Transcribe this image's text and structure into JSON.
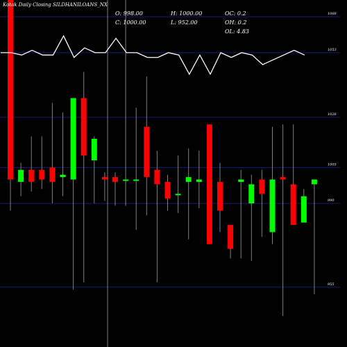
{
  "header": {
    "symbol_title": "Kotak Daily Closing SILDHANILOANS_NX"
  },
  "ohlc_panel": {
    "open": "O: 998.00",
    "close": "C: 1000.00",
    "high": "H: 1000.00",
    "low": "L: 952.00",
    "oc": "OC: 0.2",
    "oh": "OH: 0.2",
    "ol": "OL: 4.83"
  },
  "chart_data": {
    "type": "candlestick",
    "title": "",
    "grid": true,
    "background": "#000000",
    "colors": {
      "up": "#00ff00",
      "down": "#ff0000",
      "wick": "#808080",
      "line": "#ffffff",
      "grid": "#1a1a70"
    },
    "y_axis": {
      "range": [
        930,
        1075
      ],
      "ticks": [
        {
          "label": "1068",
          "value": 1068
        },
        {
          "label": "1053",
          "value": 1053
        },
        {
          "label": "1026",
          "value": 1026
        },
        {
          "label": "1005",
          "value": 1005
        },
        {
          "label": "990",
          "value": 990
        },
        {
          "label": "955",
          "value": 955
        }
      ]
    },
    "candles": [
      {
        "o": 1078,
        "h": 1078,
        "l": 987,
        "c": 1000
      },
      {
        "o": 999,
        "h": 1007,
        "l": 993,
        "c": 1004
      },
      {
        "o": 1004,
        "h": 1018,
        "l": 995,
        "c": 999
      },
      {
        "o": 1004,
        "h": 1018,
        "l": 996,
        "c": 1000
      },
      {
        "o": 1005,
        "h": 1032,
        "l": 990,
        "c": 999
      },
      {
        "o": 1001,
        "h": 1028,
        "l": 993,
        "c": 1002
      },
      {
        "o": 1000,
        "h": 1034,
        "l": 954,
        "c": 1034
      },
      {
        "o": 1034,
        "h": 1045,
        "l": 957,
        "c": 1010
      },
      {
        "o": 1008,
        "h": 1018,
        "l": 990,
        "c": 1017
      },
      {
        "o": 1001,
        "h": 1003,
        "l": 991,
        "c": 1000
      },
      {
        "o": 1001,
        "h": 1003,
        "l": 989,
        "c": 999
      },
      {
        "o": 1000,
        "h": 1078,
        "l": 989,
        "c": 1000
      },
      {
        "o": 1000,
        "h": 1030,
        "l": 979,
        "c": 1000
      },
      {
        "o": 1022,
        "h": 1043,
        "l": 985,
        "c": 1001
      },
      {
        "o": 1004,
        "h": 1012,
        "l": 957,
        "c": 998
      },
      {
        "o": 999,
        "h": 1002,
        "l": 987,
        "c": 992
      },
      {
        "o": 994,
        "h": 1010,
        "l": 986,
        "c": 994
      },
      {
        "o": 999,
        "h": 1013,
        "l": 975,
        "c": 1001
      },
      {
        "o": 999,
        "h": 1012,
        "l": 988,
        "c": 1000
      },
      {
        "o": 1023,
        "h": 1023,
        "l": 973,
        "c": 973
      },
      {
        "o": 999,
        "h": 1007,
        "l": 978,
        "c": 987
      },
      {
        "o": 981,
        "h": 981,
        "l": 967,
        "c": 971
      },
      {
        "o": 999,
        "h": 1004,
        "l": 967,
        "c": 1000
      },
      {
        "o": 990,
        "h": 1002,
        "l": 966,
        "c": 998
      },
      {
        "o": 1000,
        "h": 1004,
        "l": 976,
        "c": 994
      },
      {
        "o": 978,
        "h": 1022,
        "l": 973,
        "c": 1000
      },
      {
        "o": 1001,
        "h": 1023,
        "l": 943,
        "c": 1000
      },
      {
        "o": 998,
        "h": 1023,
        "l": 982,
        "c": 981
      },
      {
        "o": 982,
        "h": 996,
        "l": 983,
        "c": 993
      },
      {
        "o": 998,
        "h": 1000,
        "l": 952,
        "c": 1000
      }
    ],
    "line_series": {
      "name": "",
      "values": [
        1053,
        1053,
        1052,
        1054,
        1052,
        1052,
        1060,
        1051,
        1055,
        1053,
        1053,
        1059,
        1053,
        1053,
        1051,
        1051,
        1053,
        1052,
        1044,
        1052,
        1044,
        1053,
        1051,
        1053,
        1052,
        1048,
        1050,
        1052,
        1054,
        1052
      ]
    }
  }
}
